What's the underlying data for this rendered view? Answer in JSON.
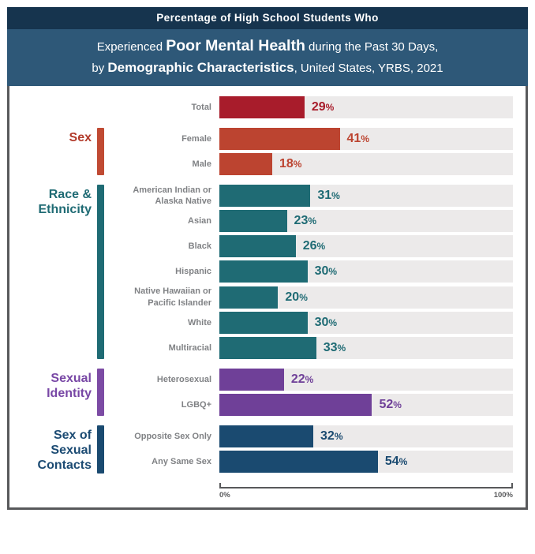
{
  "header": {
    "line1": "Percentage of High School Students Who",
    "line2_pre": "Experienced ",
    "line2_bold": "Poor Mental Health",
    "line2_post": " during the Past 30 Days,",
    "line3_pre": "by ",
    "line3_bold": "Demographic Characteristics",
    "line3_post": ", United States, YRBS, 2021"
  },
  "colors": {
    "header_top": "#16344E",
    "header_sub": "#2E5878",
    "frame_border": "#58595B",
    "track": "#ECEAEA",
    "row_label": "#808285",
    "total_red": "#A81C2B",
    "sex_orange": "#BC4430",
    "race_teal": "#1F6B74",
    "identity_purple": "#6F4098",
    "contacts_navy": "#1A4A70"
  },
  "units": {
    "percent": "%"
  },
  "axis": {
    "min_label": "0%",
    "max_label": "100%"
  },
  "groups": [
    {
      "label": "",
      "label_color": null
    },
    {
      "label": "Sex",
      "label_color": "#B23A2A",
      "indicator_color": "#C04A33"
    },
    {
      "label": "Race & Ethnicity",
      "label_color": "#1F6B74",
      "indicator_color": "#1F6B74"
    },
    {
      "label": "Sexual Identity",
      "label_color": "#7847A5",
      "indicator_color": "#7C4BA4"
    },
    {
      "label": "Sex of Sexual Contacts",
      "label_color": "#1C4B73",
      "indicator_color": "#1A4A70"
    }
  ],
  "rows": [
    {
      "label": "Total",
      "value": 29,
      "color": "#A81C2B"
    },
    {
      "label": "Female",
      "value": 41,
      "color": "#BC4430"
    },
    {
      "label": "Male",
      "value": 18,
      "color": "#BC4430"
    },
    {
      "label": "American Indian or Alaska Native",
      "value": 31,
      "color": "#1F6B74"
    },
    {
      "label": "Asian",
      "value": 23,
      "color": "#1F6B74"
    },
    {
      "label": "Black",
      "value": 26,
      "color": "#1F6B74"
    },
    {
      "label": "Hispanic",
      "value": 30,
      "color": "#1F6B74"
    },
    {
      "label": "Native Hawaiian or Pacific Islander",
      "value": 20,
      "color": "#1F6B74"
    },
    {
      "label": "White",
      "value": 30,
      "color": "#1F6B74"
    },
    {
      "label": "Multiracial",
      "value": 33,
      "color": "#1F6B74"
    },
    {
      "label": "Heterosexual",
      "value": 22,
      "color": "#6F4098"
    },
    {
      "label": "LGBQ+",
      "value": 52,
      "color": "#6F4098"
    },
    {
      "label": "Opposite Sex Only",
      "value": 32,
      "color": "#1A4A70"
    },
    {
      "label": "Any Same Sex",
      "value": 54,
      "color": "#1A4A70"
    }
  ],
  "chart_data": {
    "type": "bar",
    "orientation": "horizontal",
    "title": "Percentage of High School Students Who Experienced Poor Mental Health during the Past 30 Days, by Demographic Characteristics, United States, YRBS, 2021",
    "xlabel": "",
    "ylabel": "",
    "xlim": [
      0,
      100
    ],
    "x_tick_labels": [
      "0%",
      "100%"
    ],
    "grid": false,
    "legend": false,
    "series": [
      {
        "name": "Total",
        "categories": [
          "Total"
        ],
        "values": [
          29
        ]
      },
      {
        "name": "Sex",
        "categories": [
          "Female",
          "Male"
        ],
        "values": [
          41,
          18
        ]
      },
      {
        "name": "Race & Ethnicity",
        "categories": [
          "American Indian or Alaska Native",
          "Asian",
          "Black",
          "Hispanic",
          "Native Hawaiian or Pacific Islander",
          "White",
          "Multiracial"
        ],
        "values": [
          31,
          23,
          26,
          30,
          20,
          30,
          33
        ]
      },
      {
        "name": "Sexual Identity",
        "categories": [
          "Heterosexual",
          "LGBQ+"
        ],
        "values": [
          22,
          52
        ]
      },
      {
        "name": "Sex of Sexual Contacts",
        "categories": [
          "Opposite Sex Only",
          "Any Same Sex"
        ],
        "values": [
          32,
          54
        ]
      }
    ]
  }
}
